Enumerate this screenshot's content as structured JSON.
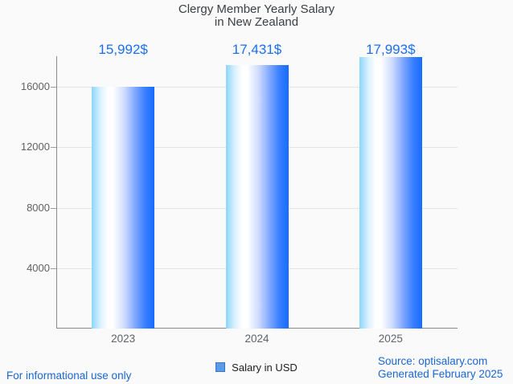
{
  "title": {
    "line1": "Clergy Member Yearly Salary",
    "line2": "in New Zealand"
  },
  "chart_data": {
    "type": "bar",
    "categories": [
      "2023",
      "2024",
      "2025"
    ],
    "values": [
      15992,
      17431,
      17993
    ],
    "value_labels": [
      "15,992$",
      "17,431$",
      "17,993$"
    ],
    "series": [
      {
        "name": "Salary in USD",
        "values": [
          15992,
          17431,
          17993
        ]
      }
    ],
    "title": "Clergy Member Yearly Salary in New Zealand",
    "xlabel": "",
    "ylabel": "",
    "y_ticks": [
      4000,
      8000,
      12000,
      16000
    ],
    "ylim": [
      0,
      18100
    ],
    "grid": "horizontal",
    "legend_position": "bottom"
  },
  "legend": {
    "label": "Salary in USD",
    "marker_fill": "#5b9ce8",
    "marker_border": "#3976c9"
  },
  "footer": {
    "left": "For informational use only",
    "source": "Source: optisalary.com",
    "generated": "Generated February 2025"
  },
  "colors": {
    "value_label_blue": "#1a6ff0",
    "footer_blue": "#1967d2",
    "axis_gray": "#8a8a8a",
    "grid_gray": "#e4e4e4",
    "tick_label_gray": "#616161",
    "title_gray": "#3c4043",
    "bar_gradient_left": "#8bd6fb",
    "bar_gradient_mid": "#ffffff",
    "bar_gradient_right": "#176bff",
    "background": "#fafafa"
  }
}
